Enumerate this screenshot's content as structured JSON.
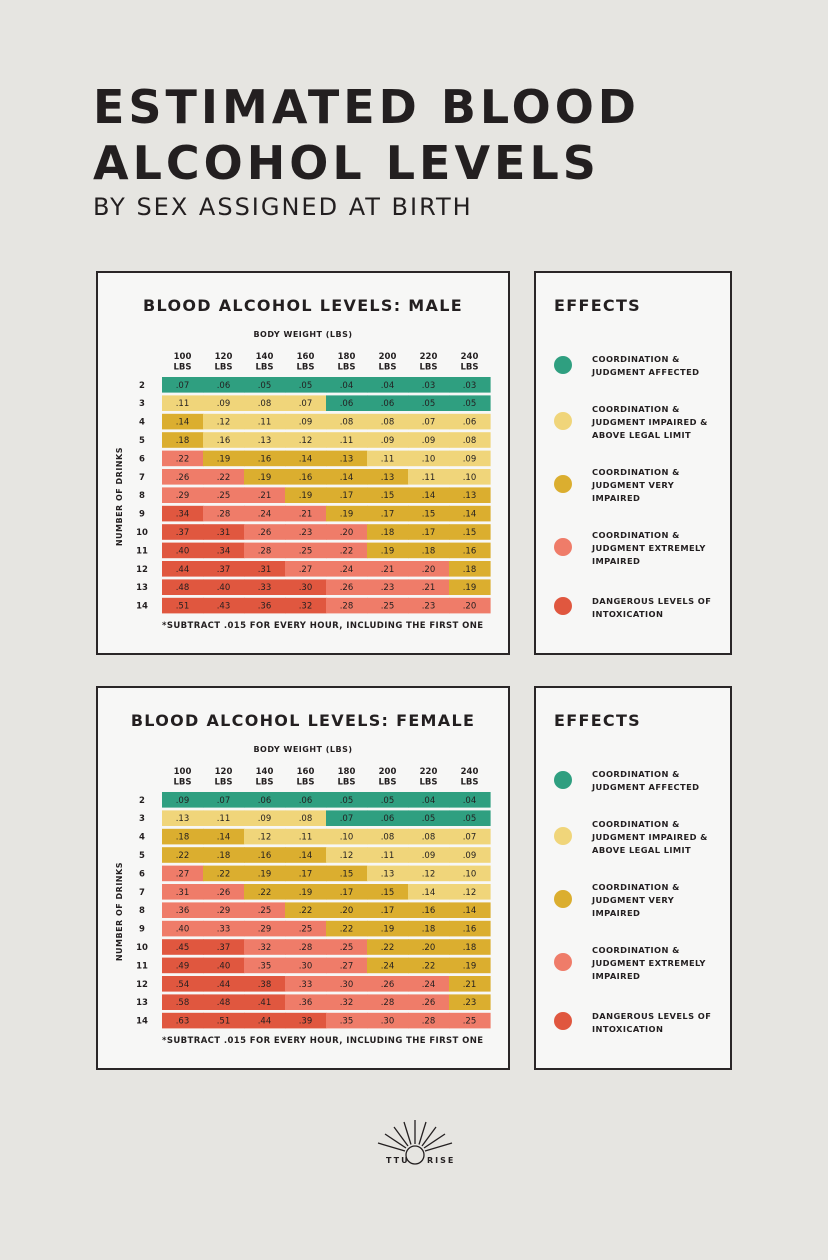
{
  "title_line1": "ESTIMATED BLOOD",
  "title_line2": "ALCOHOL LEVELS",
  "subtitle": "BY SEX ASSIGNED AT BIRTH",
  "colors": {
    "affected": "#2f9f80",
    "impaired_legal": "#f0d57a",
    "very_impaired": "#dbae2f",
    "extremely_impaired": "#ef7c69",
    "dangerous": "#e0573f"
  },
  "chart_data": [
    {
      "type": "table",
      "title": "BLOOD ALCOHOL LEVELS: MALE",
      "xlabel": "BODY WEIGHT (LBS)",
      "ylabel": "NUMBER OF DRINKS",
      "columns": [
        "100 LBS",
        "120 LBS",
        "140 LBS",
        "160 LBS",
        "180 LBS",
        "200 LBS",
        "220 LBS",
        "240 LBS"
      ],
      "rows": [
        "2",
        "3",
        "4",
        "5",
        "6",
        "7",
        "8",
        "9",
        "10",
        "11",
        "12",
        "13",
        "14"
      ],
      "values": [
        [
          ".07",
          ".06",
          ".05",
          ".05",
          ".04",
          ".04",
          ".03",
          ".03"
        ],
        [
          ".11",
          ".09",
          ".08",
          ".07",
          ".06",
          ".06",
          ".05",
          ".05"
        ],
        [
          ".14",
          ".12",
          ".11",
          ".09",
          ".08",
          ".08",
          ".07",
          ".06"
        ],
        [
          ".18",
          ".16",
          ".13",
          ".12",
          ".11",
          ".09",
          ".09",
          ".08"
        ],
        [
          ".22",
          ".19",
          ".16",
          ".14",
          ".13",
          ".11",
          ".10",
          ".09"
        ],
        [
          ".26",
          ".22",
          ".19",
          ".16",
          ".14",
          ".13",
          ".11",
          ".10"
        ],
        [
          ".29",
          ".25",
          ".21",
          ".19",
          ".17",
          ".15",
          ".14",
          ".13"
        ],
        [
          ".34",
          ".28",
          ".24",
          ".21",
          ".19",
          ".17",
          ".15",
          ".14"
        ],
        [
          ".37",
          ".31",
          ".26",
          ".23",
          ".20",
          ".18",
          ".17",
          ".15"
        ],
        [
          ".40",
          ".34",
          ".28",
          ".25",
          ".22",
          ".19",
          ".18",
          ".16"
        ],
        [
          ".44",
          ".37",
          ".31",
          ".27",
          ".24",
          ".21",
          ".20",
          ".18"
        ],
        [
          ".48",
          ".40",
          ".33",
          ".30",
          ".26",
          ".23",
          ".21",
          ".19"
        ],
        [
          ".51",
          ".43",
          ".36",
          ".32",
          ".28",
          ".25",
          ".23",
          ".20"
        ]
      ],
      "levels": [
        [
          0,
          0,
          0,
          0,
          0,
          0,
          0,
          0
        ],
        [
          1,
          1,
          1,
          1,
          0,
          0,
          0,
          0
        ],
        [
          2,
          1,
          1,
          1,
          1,
          1,
          1,
          1
        ],
        [
          2,
          1,
          1,
          1,
          1,
          1,
          1,
          1
        ],
        [
          3,
          2,
          2,
          2,
          2,
          1,
          1,
          1
        ],
        [
          3,
          3,
          2,
          2,
          2,
          2,
          1,
          1
        ],
        [
          3,
          3,
          3,
          2,
          2,
          2,
          2,
          2
        ],
        [
          4,
          3,
          3,
          3,
          2,
          2,
          2,
          2
        ],
        [
          4,
          4,
          3,
          3,
          3,
          2,
          2,
          2
        ],
        [
          4,
          4,
          3,
          3,
          3,
          2,
          2,
          2
        ],
        [
          4,
          4,
          4,
          3,
          3,
          3,
          3,
          2
        ],
        [
          4,
          4,
          4,
          4,
          3,
          3,
          3,
          2
        ],
        [
          4,
          4,
          4,
          4,
          3,
          3,
          3,
          3
        ]
      ],
      "footnote": "*SUBTRACT .015 FOR EVERY HOUR, INCLUDING THE FIRST ONE"
    },
    {
      "type": "table",
      "title": "BLOOD ALCOHOL LEVELS: FEMALE",
      "xlabel": "BODY WEIGHT (LBS)",
      "ylabel": "NUMBER OF DRINKS",
      "columns": [
        "100 LBS",
        "120 LBS",
        "140 LBS",
        "160 LBS",
        "180 LBS",
        "200 LBS",
        "220 LBS",
        "240 LBS"
      ],
      "rows": [
        "2",
        "3",
        "4",
        "5",
        "6",
        "7",
        "8",
        "9",
        "10",
        "11",
        "12",
        "13",
        "14"
      ],
      "values": [
        [
          ".09",
          ".07",
          ".06",
          ".06",
          ".05",
          ".05",
          ".04",
          ".04"
        ],
        [
          ".13",
          ".11",
          ".09",
          ".08",
          ".07",
          ".06",
          ".05",
          ".05"
        ],
        [
          ".18",
          ".14",
          ".12",
          ".11",
          ".10",
          ".08",
          ".08",
          ".07"
        ],
        [
          ".22",
          ".18",
          ".16",
          ".14",
          ".12",
          ".11",
          ".09",
          ".09"
        ],
        [
          ".27",
          ".22",
          ".19",
          ".17",
          ".15",
          ".13",
          ".12",
          ".10"
        ],
        [
          ".31",
          ".26",
          ".22",
          ".19",
          ".17",
          ".15",
          ".14",
          ".12"
        ],
        [
          ".36",
          ".29",
          ".25",
          ".22",
          ".20",
          ".17",
          ".16",
          ".14"
        ],
        [
          ".40",
          ".33",
          ".29",
          ".25",
          ".22",
          ".19",
          ".18",
          ".16"
        ],
        [
          ".45",
          ".37",
          ".32",
          ".28",
          ".25",
          ".22",
          ".20",
          ".18"
        ],
        [
          ".49",
          ".40",
          ".35",
          ".30",
          ".27",
          ".24",
          ".22",
          ".19"
        ],
        [
          ".54",
          ".44",
          ".38",
          ".33",
          ".30",
          ".26",
          ".24",
          ".21"
        ],
        [
          ".58",
          ".48",
          ".41",
          ".36",
          ".32",
          ".28",
          ".26",
          ".23"
        ],
        [
          ".63",
          ".51",
          ".44",
          ".39",
          ".35",
          ".30",
          ".28",
          ".25"
        ]
      ],
      "levels": [
        [
          0,
          0,
          0,
          0,
          0,
          0,
          0,
          0
        ],
        [
          1,
          1,
          1,
          1,
          0,
          0,
          0,
          0
        ],
        [
          2,
          2,
          1,
          1,
          1,
          1,
          1,
          1
        ],
        [
          2,
          2,
          2,
          2,
          1,
          1,
          1,
          1
        ],
        [
          3,
          2,
          2,
          2,
          2,
          1,
          1,
          1
        ],
        [
          3,
          3,
          2,
          2,
          2,
          2,
          1,
          1
        ],
        [
          3,
          3,
          3,
          2,
          2,
          2,
          2,
          2
        ],
        [
          3,
          3,
          3,
          3,
          2,
          2,
          2,
          2
        ],
        [
          4,
          4,
          3,
          3,
          3,
          2,
          2,
          2
        ],
        [
          4,
          4,
          3,
          3,
          3,
          2,
          2,
          2
        ],
        [
          4,
          4,
          4,
          3,
          3,
          3,
          3,
          2
        ],
        [
          4,
          4,
          4,
          3,
          3,
          3,
          3,
          2
        ],
        [
          4,
          4,
          4,
          4,
          3,
          3,
          3,
          3
        ]
      ],
      "footnote": "*SUBTRACT .015 FOR EVERY HOUR, INCLUDING THE FIRST ONE"
    }
  ],
  "effects": {
    "title": "EFFECTS",
    "items": [
      {
        "text": "COORDINATION & JUDGMENT AFFECTED",
        "color": "#2f9f80"
      },
      {
        "text": "COORDINATION & JUDGMENT IMPAIRED & ABOVE LEGAL LIMIT",
        "color": "#f0d57a"
      },
      {
        "text": "COORDINATION & JUDGMENT VERY IMPAIRED",
        "color": "#dbae2f"
      },
      {
        "text": "COORDINATION & JUDGMENT EXTREMELY IMPAIRED",
        "color": "#ef7c69"
      },
      {
        "text": "DANGEROUS LEVELS OF INTOXICATION",
        "color": "#e0573f"
      }
    ]
  },
  "logo": {
    "left_text": "TTU",
    "right_text": "RISE"
  }
}
